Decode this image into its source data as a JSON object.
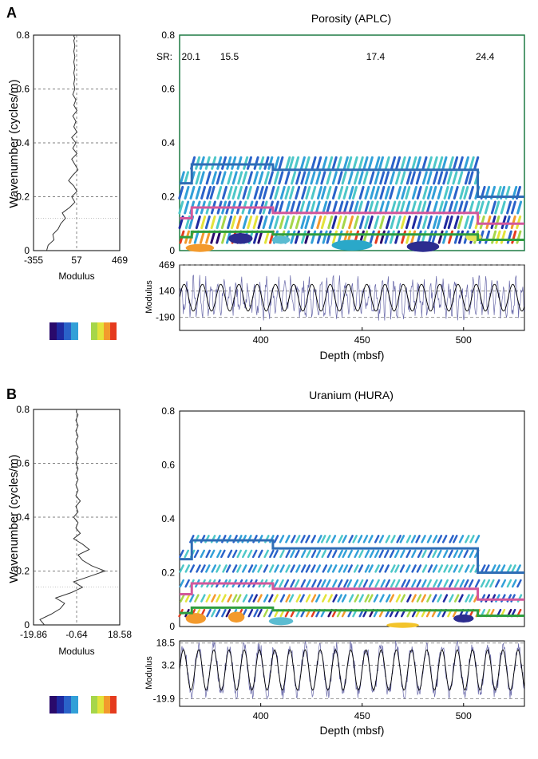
{
  "chart_data": [
    {
      "panel": "A",
      "type": "line",
      "ylabel": "Wavenumber (cycles/m)",
      "xlabel": "Modulus",
      "xticks": [
        "-355",
        "57",
        "469"
      ],
      "xlim": [
        -355,
        469
      ],
      "ylim": [
        0,
        0.8
      ],
      "yticks": [
        "0",
        "0.2",
        "0.4",
        "0.6",
        "0.8"
      ],
      "grid": true,
      "series": [
        {
          "x": [
            -230,
            -215,
            -160,
            -170,
            -120,
            -95,
            -50,
            -80,
            -10,
            40,
            10,
            60,
            30,
            -20,
            20,
            70,
            40,
            10,
            60,
            20,
            50,
            10,
            60,
            30,
            50,
            20,
            60,
            30,
            50,
            20,
            40,
            30,
            40,
            30,
            40,
            30,
            40,
            30,
            40,
            30,
            40,
            30,
            35
          ],
          "y": [
            0.0,
            0.02,
            0.04,
            0.06,
            0.08,
            0.1,
            0.12,
            0.14,
            0.16,
            0.18,
            0.2,
            0.22,
            0.24,
            0.26,
            0.28,
            0.3,
            0.32,
            0.34,
            0.36,
            0.38,
            0.4,
            0.42,
            0.44,
            0.46,
            0.48,
            0.5,
            0.52,
            0.54,
            0.56,
            0.58,
            0.6,
            0.62,
            0.64,
            0.66,
            0.68,
            0.7,
            0.72,
            0.74,
            0.76,
            0.78,
            0.79,
            0.795,
            0.8
          ]
        }
      ]
    },
    {
      "panel": "A",
      "type": "heatmap",
      "title": "Porosity (APLC)",
      "xlim": [
        360,
        530
      ],
      "ylim": [
        0,
        0.8
      ],
      "yticks": [
        "0",
        "0.2",
        "0.4",
        "0.6",
        "0.8"
      ],
      "sr_label": "SR:",
      "sr_values": [
        {
          "depth": 361,
          "label": "20.1"
        },
        {
          "depth": 380,
          "label": "15.5"
        },
        {
          "depth": 452,
          "label": "17.4"
        },
        {
          "depth": 506,
          "label": "24.4"
        }
      ],
      "bands": [
        {
          "color": "#2f6db5",
          "steps": [
            [
              360,
              0.25
            ],
            [
              366,
              0.32
            ],
            [
              406,
              0.3
            ],
            [
              507,
              0.2
            ],
            [
              530,
              0.2
            ]
          ]
        },
        {
          "color": "#d3589c",
          "steps": [
            [
              360,
              0.12
            ],
            [
              366,
              0.16
            ],
            [
              406,
              0.14
            ],
            [
              507,
              0.1
            ],
            [
              530,
              0.1
            ]
          ]
        },
        {
          "color": "#2f9e3f",
          "steps": [
            [
              360,
              0.05
            ],
            [
              366,
              0.07
            ],
            [
              406,
              0.06
            ],
            [
              507,
              0.04
            ],
            [
              530,
              0.04
            ]
          ]
        }
      ],
      "blobs": [
        {
          "x": 370,
          "y": 0.01,
          "w": 14,
          "h": 0.015,
          "c": "#f39a2c"
        },
        {
          "x": 390,
          "y": 0.045,
          "w": 12,
          "h": 0.02,
          "c": "#2c2c8f"
        },
        {
          "x": 410,
          "y": 0.04,
          "w": 9,
          "h": 0.015,
          "c": "#5bbcd1"
        },
        {
          "x": 445,
          "y": 0.02,
          "w": 20,
          "h": 0.02,
          "c": "#2aa8c9"
        },
        {
          "x": 480,
          "y": 0.015,
          "w": 16,
          "h": 0.02,
          "c": "#2c2c8f"
        },
        {
          "x": 505,
          "y": 0.05,
          "w": 8,
          "h": 0.015,
          "c": "#e3e35a"
        }
      ]
    },
    {
      "panel": "A",
      "type": "line",
      "xlabel": "Depth (mbsf)",
      "ylabel": "Modulus",
      "xticks": [
        "400",
        "450",
        "500"
      ],
      "xlim": [
        360,
        530
      ],
      "ylim": [
        -355,
        469
      ],
      "yticks": [
        "469",
        "140",
        "-190"
      ],
      "series": [
        {
          "name": "",
          "color": "#000000",
          "period": 9,
          "amplitude": 170,
          "mean": 57
        },
        {
          "name": "",
          "color": "#6a6aaa",
          "period": 3,
          "amplitude": 180,
          "mean": 57
        }
      ]
    },
    {
      "panel": "B",
      "type": "line",
      "ylabel": "Wavenumber (cycles/m)",
      "xlabel": "Modulus",
      "xticks": [
        "-19.86",
        "-0.64",
        "18.58"
      ],
      "xlim": [
        -19.86,
        18.58
      ],
      "ylim": [
        0,
        0.8
      ],
      "yticks": [
        "0",
        "0.2",
        "0.4",
        "0.6",
        "0.8"
      ],
      "grid": true,
      "series": [
        {
          "x": [
            -15,
            -17,
            -12,
            -8,
            -6,
            -10,
            -3,
            2,
            -2,
            5,
            12,
            6,
            2,
            0,
            5,
            2,
            -2,
            1,
            -1,
            0,
            -2,
            0,
            -1,
            1,
            -1,
            0,
            -1,
            0,
            -1,
            0,
            -1,
            0,
            -1,
            0,
            -1,
            0,
            -1,
            0,
            -1,
            0,
            -0.8,
            -0.7,
            -0.6
          ],
          "y": [
            0.0,
            0.02,
            0.04,
            0.06,
            0.08,
            0.1,
            0.12,
            0.14,
            0.16,
            0.18,
            0.2,
            0.22,
            0.24,
            0.26,
            0.28,
            0.3,
            0.32,
            0.34,
            0.36,
            0.38,
            0.4,
            0.42,
            0.44,
            0.46,
            0.48,
            0.5,
            0.52,
            0.54,
            0.56,
            0.58,
            0.6,
            0.62,
            0.64,
            0.66,
            0.68,
            0.7,
            0.72,
            0.74,
            0.76,
            0.78,
            0.79,
            0.795,
            0.8
          ]
        }
      ]
    },
    {
      "panel": "B",
      "type": "heatmap",
      "title": "Uranium (HURA)",
      "xlim": [
        360,
        530
      ],
      "ylim": [
        0,
        0.8
      ],
      "yticks": [
        "0",
        "0.2",
        "0.4",
        "0.6",
        "0.8"
      ],
      "bands": [
        {
          "color": "#2f6db5",
          "steps": [
            [
              360,
              0.25
            ],
            [
              366,
              0.32
            ],
            [
              406,
              0.29
            ],
            [
              507,
              0.2
            ],
            [
              530,
              0.2
            ]
          ]
        },
        {
          "color": "#d3589c",
          "steps": [
            [
              360,
              0.12
            ],
            [
              366,
              0.16
            ],
            [
              406,
              0.14
            ],
            [
              507,
              0.1
            ],
            [
              530,
              0.1
            ]
          ]
        },
        {
          "color": "#2f9e3f",
          "steps": [
            [
              360,
              0.05
            ],
            [
              366,
              0.07
            ],
            [
              406,
              0.06
            ],
            [
              507,
              0.04
            ],
            [
              530,
              0.04
            ]
          ]
        }
      ],
      "blobs": [
        {
          "x": 368,
          "y": 0.03,
          "w": 10,
          "h": 0.02,
          "c": "#f39a2c"
        },
        {
          "x": 388,
          "y": 0.035,
          "w": 8,
          "h": 0.02,
          "c": "#f39a2c"
        },
        {
          "x": 410,
          "y": 0.02,
          "w": 12,
          "h": 0.015,
          "c": "#5bbcd1"
        },
        {
          "x": 470,
          "y": 0.005,
          "w": 16,
          "h": 0.01,
          "c": "#f3c42c"
        },
        {
          "x": 500,
          "y": 0.03,
          "w": 10,
          "h": 0.015,
          "c": "#2c2c8f"
        }
      ]
    },
    {
      "panel": "B",
      "type": "line",
      "xlabel": "Depth (mbsf)",
      "ylabel": "Modulus",
      "xticks": [
        "400",
        "450",
        "500"
      ],
      "xlim": [
        360,
        530
      ],
      "ylim": [
        -25,
        20
      ],
      "yticks": [
        "18.5",
        "3.2",
        "-19.9"
      ],
      "series": [
        {
          "name": "",
          "color": "#000000",
          "period": 7.5,
          "amplitude": 14,
          "mean": 0
        },
        {
          "name": "",
          "color": "#6a6aaa",
          "period": 7.5,
          "amplitude": 16,
          "mean": 0
        }
      ]
    }
  ],
  "panels": {
    "a": {
      "letter": "A",
      "title": "Porosity (APLC)"
    },
    "b": {
      "letter": "B",
      "title": "Uranium (HURA)"
    }
  },
  "colors": {
    "scale": [
      "#2a0a6b",
      "#1f2aa0",
      "#2a62c9",
      "#32a0d8",
      "#4dc7c8",
      "#a6d64a",
      "#e3e33a",
      "#f39a2c",
      "#e53b1e"
    ]
  }
}
